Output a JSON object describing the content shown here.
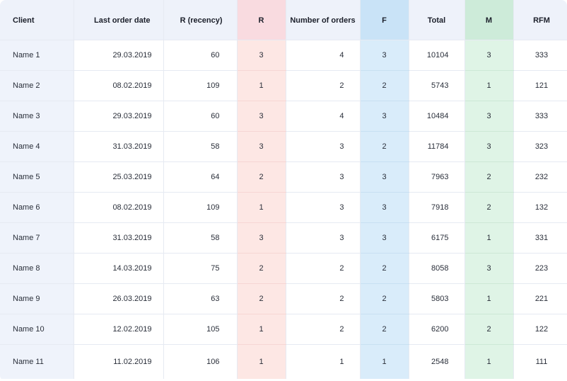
{
  "table": {
    "headers": {
      "client": "Client",
      "last_order_date": "Last order date",
      "recency": "R (recency)",
      "r": "R",
      "number_of_orders": "Number of orders",
      "f": "F",
      "total": "Total",
      "m": "M",
      "rfm": "RFM"
    },
    "rows": [
      {
        "client": "Name 1",
        "date": "29.03.2019",
        "recency": "60",
        "r": "3",
        "orders": "4",
        "f": "3",
        "total": "10104",
        "m": "3",
        "rfm": "333"
      },
      {
        "client": "Name 2",
        "date": "08.02.2019",
        "recency": "109",
        "r": "1",
        "orders": "2",
        "f": "2",
        "total": "5743",
        "m": "1",
        "rfm": "121"
      },
      {
        "client": "Name 3",
        "date": "29.03.2019",
        "recency": "60",
        "r": "3",
        "orders": "4",
        "f": "3",
        "total": "10484",
        "m": "3",
        "rfm": "333"
      },
      {
        "client": "Name 4",
        "date": "31.03.2019",
        "recency": "58",
        "r": "3",
        "orders": "3",
        "f": "2",
        "total": "11784",
        "m": "3",
        "rfm": "323"
      },
      {
        "client": "Name 5",
        "date": "25.03.2019",
        "recency": "64",
        "r": "2",
        "orders": "3",
        "f": "3",
        "total": "7963",
        "m": "2",
        "rfm": "232"
      },
      {
        "client": "Name 6",
        "date": "08.02.2019",
        "recency": "109",
        "r": "1",
        "orders": "3",
        "f": "3",
        "total": "7918",
        "m": "2",
        "rfm": "132"
      },
      {
        "client": "Name 7",
        "date": "31.03.2019",
        "recency": "58",
        "r": "3",
        "orders": "3",
        "f": "3",
        "total": "6175",
        "m": "1",
        "rfm": "331"
      },
      {
        "client": "Name 8",
        "date": "14.03.2019",
        "recency": "75",
        "r": "2",
        "orders": "2",
        "f": "2",
        "total": "8058",
        "m": "3",
        "rfm": "223"
      },
      {
        "client": "Name 9",
        "date": "26.03.2019",
        "recency": "63",
        "r": "2",
        "orders": "2",
        "f": "2",
        "total": "5803",
        "m": "1",
        "rfm": "221"
      },
      {
        "client": "Name 10",
        "date": "12.02.2019",
        "recency": "105",
        "r": "1",
        "orders": "2",
        "f": "2",
        "total": "6200",
        "m": "2",
        "rfm": "122"
      },
      {
        "client": "Name 11",
        "date": "11.02.2019",
        "recency": "106",
        "r": "1",
        "orders": "1",
        "f": "1",
        "total": "2548",
        "m": "1",
        "rfm": "111"
      }
    ]
  },
  "colors": {
    "r_column": "#fde7e4",
    "f_column": "#d9ecfa",
    "m_column": "#dff4e6",
    "header_bg": "#eef2fa"
  }
}
